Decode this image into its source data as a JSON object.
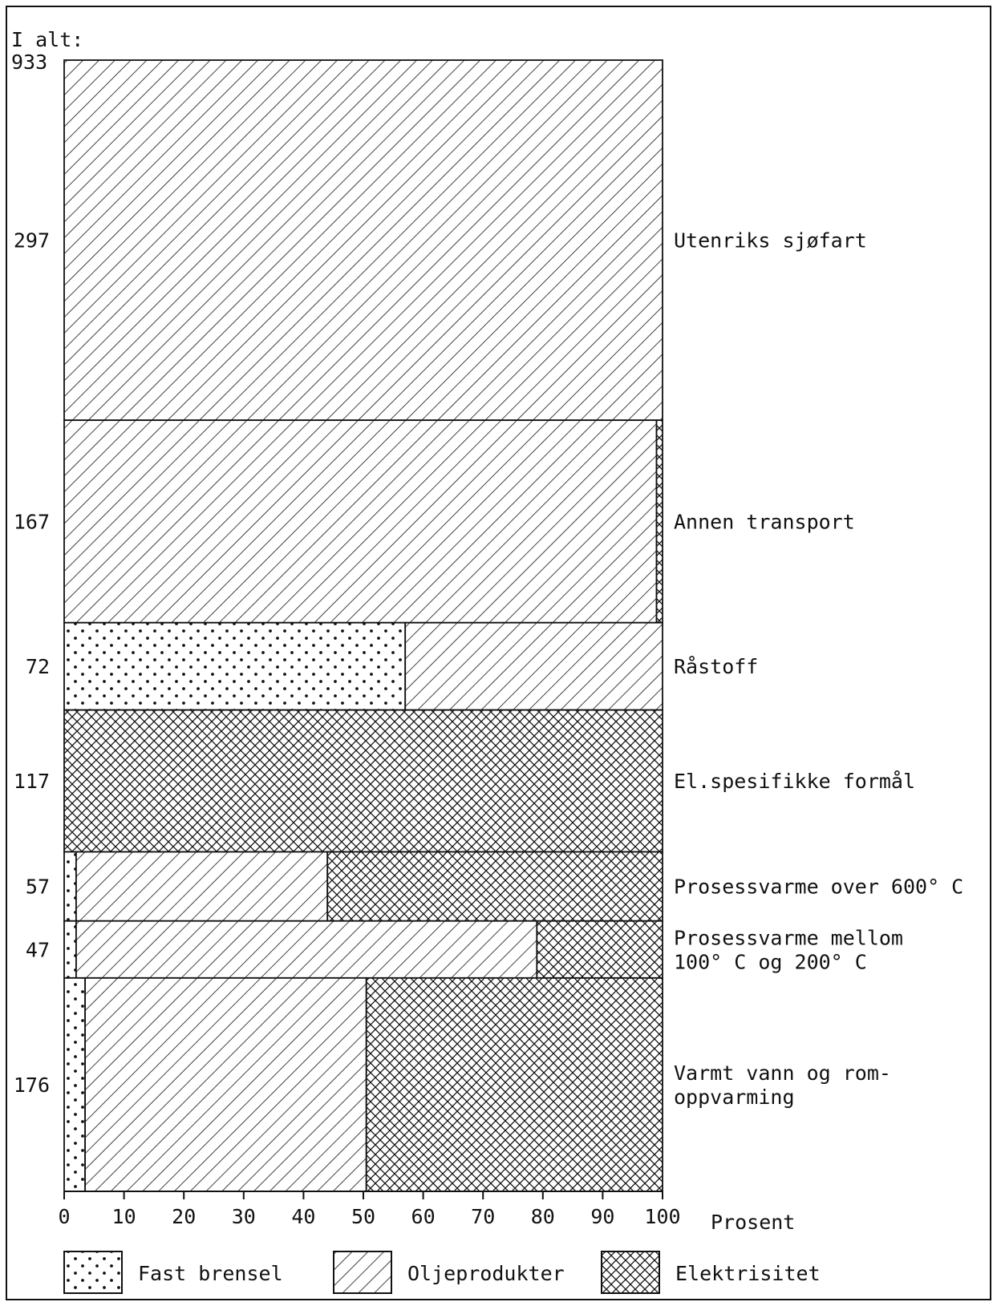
{
  "chart_data": {
    "type": "bar",
    "orientation": "horizontal-stacked-percent-marimekko",
    "total_label": "I alt:",
    "total": "933",
    "xlabel": "Prosent",
    "xlim": [
      0,
      100
    ],
    "xticks": [
      "0",
      "10",
      "20",
      "30",
      "40",
      "50",
      "60",
      "70",
      "80",
      "90",
      "100"
    ],
    "legend": {
      "placement": "bottom",
      "entries": [
        {
          "key": "fast",
          "label": "Fast brensel",
          "pattern": "dots"
        },
        {
          "key": "olje",
          "label": "Oljeprodukter",
          "pattern": "diagonal"
        },
        {
          "key": "el",
          "label": "Elektrisitet",
          "pattern": "crosshatch"
        }
      ]
    },
    "categories": [
      {
        "name": "Utenriks sjøfart",
        "lines": [
          "Utenriks sjøfart"
        ],
        "total": 297,
        "total_label": "297",
        "shares": {
          "fast": 0,
          "olje": 100,
          "el": 0
        }
      },
      {
        "name": "Annen transport",
        "lines": [
          "Annen transport"
        ],
        "total": 167,
        "total_label": "167",
        "shares": {
          "fast": 0,
          "olje": 99,
          "el": 1
        }
      },
      {
        "name": "Råstoff",
        "lines": [
          "Råstoff"
        ],
        "total": 72,
        "total_label": "72",
        "shares": {
          "fast": 57,
          "olje": 43,
          "el": 0
        }
      },
      {
        "name": "El.spesifikke formål",
        "lines": [
          "El.spesifikke formål"
        ],
        "total": 117,
        "total_label": "117",
        "shares": {
          "fast": 0,
          "olje": 0,
          "el": 100
        }
      },
      {
        "name": "Prosessvarme over 600° C",
        "lines": [
          "Prosessvarme over 600° C"
        ],
        "total": 57,
        "total_label": "57",
        "shares": {
          "fast": 2,
          "olje": 42,
          "el": 56
        }
      },
      {
        "name": "Prosessvarme mellom 100° C og 200° C",
        "lines": [
          "Prosessvarme mellom",
          "100° C og 200° C"
        ],
        "total": 47,
        "total_label": "47",
        "shares": {
          "fast": 2,
          "olje": 77,
          "el": 21
        }
      },
      {
        "name": "Varmt vann og romoppvarming",
        "lines": [
          "Varmt vann og rom-",
          "oppvarming"
        ],
        "total": 176,
        "total_label": "176",
        "shares": {
          "fast": 3.5,
          "olje": 47,
          "el": 49.5
        }
      }
    ]
  }
}
